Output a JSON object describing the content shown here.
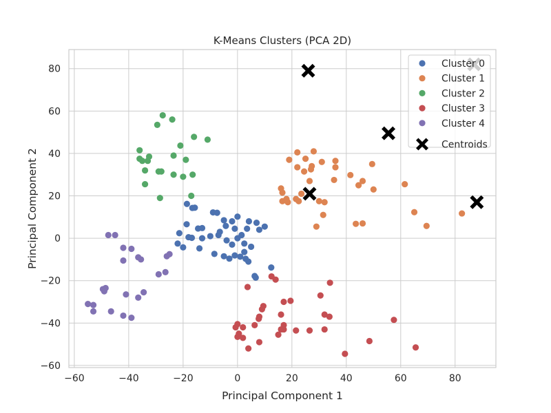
{
  "chart_data": {
    "type": "scatter",
    "title": "K-Means Clusters (PCA 2D)",
    "xlabel": "Principal Component 1",
    "ylabel": "Principal Component 2",
    "xlim": [
      -62,
      95
    ],
    "ylim": [
      -61,
      89
    ],
    "xticks": [
      -60,
      -40,
      -20,
      0,
      20,
      40,
      60,
      80
    ],
    "yticks": [
      -60,
      -40,
      -20,
      0,
      20,
      40,
      60,
      80
    ],
    "grid": true,
    "legend_position": "top-right",
    "series": [
      {
        "name": "Cluster 0",
        "color": "#4c72b0",
        "points": [
          [
            -18.6,
            16.2
          ],
          [
            -16.6,
            14.3
          ],
          [
            -15.7,
            14.4
          ],
          [
            -9.0,
            12.2
          ],
          [
            -7.5,
            12.0
          ],
          [
            -18.7,
            6.6
          ],
          [
            -14.5,
            4.6
          ],
          [
            -13.0,
            4.8
          ],
          [
            -5.0,
            8.5
          ],
          [
            -2.0,
            8.0
          ],
          [
            0.0,
            10.2
          ],
          [
            4.2,
            8.0
          ],
          [
            7.0,
            7.3
          ],
          [
            10.0,
            5.5
          ],
          [
            8.0,
            4.0
          ],
          [
            -21.4,
            2.4
          ],
          [
            -16.8,
            0.2
          ],
          [
            -14.0,
            -4.8
          ],
          [
            -8.5,
            -7.4
          ],
          [
            -5.0,
            -8.5
          ],
          [
            -3.0,
            -9.6
          ],
          [
            -1.0,
            -8.1
          ],
          [
            1.0,
            -8.7
          ],
          [
            3.0,
            -9.7
          ],
          [
            4.0,
            -11.0
          ],
          [
            -22.0,
            -2.5
          ],
          [
            -20.0,
            -4.3
          ],
          [
            -18.0,
            0.5
          ],
          [
            -13.0,
            0.0
          ],
          [
            -10.0,
            1.0
          ],
          [
            -6.5,
            3.0
          ],
          [
            -4.0,
            -1.0
          ],
          [
            -2.0,
            -3.0
          ],
          [
            0.0,
            0.0
          ],
          [
            1.5,
            1.5
          ],
          [
            2.5,
            -2.5
          ],
          [
            3.5,
            4.5
          ],
          [
            5.0,
            -4.0
          ],
          [
            2.5,
            -6.5
          ],
          [
            -1.0,
            4.5
          ],
          [
            6.3,
            -17.8
          ],
          [
            6.7,
            -18.6
          ],
          [
            12.4,
            -13.8
          ],
          [
            -4.3,
            5.8
          ],
          [
            -7.0,
            1.5
          ]
        ]
      },
      {
        "name": "Cluster 1",
        "color": "#dd8452",
        "points": [
          [
            22.0,
            40.5
          ],
          [
            28.0,
            41.0
          ],
          [
            19.0,
            37.0
          ],
          [
            25.0,
            37.5
          ],
          [
            31.0,
            36.0
          ],
          [
            36.0,
            36.5
          ],
          [
            22.0,
            33.5
          ],
          [
            24.5,
            31.5
          ],
          [
            27.0,
            32.5
          ],
          [
            27.3,
            34.0
          ],
          [
            36.0,
            33.5
          ],
          [
            41.5,
            29.8
          ],
          [
            49.5,
            35.0
          ],
          [
            16.0,
            23.5
          ],
          [
            16.5,
            21.5
          ],
          [
            21.5,
            18.5
          ],
          [
            23.5,
            21.0
          ],
          [
            18.0,
            18.5
          ],
          [
            16.5,
            17.5
          ],
          [
            18.5,
            17.0
          ],
          [
            22.5,
            17.5
          ],
          [
            26.5,
            27.0
          ],
          [
            30.0,
            17.5
          ],
          [
            32.0,
            17.0
          ],
          [
            35.5,
            27.5
          ],
          [
            44.5,
            25.0
          ],
          [
            46.0,
            27.0
          ],
          [
            50.0,
            23.0
          ],
          [
            61.5,
            25.5
          ],
          [
            31.5,
            11.0
          ],
          [
            29.0,
            5.5
          ],
          [
            43.5,
            6.8
          ],
          [
            46.0,
            7.0
          ],
          [
            65.0,
            12.3
          ],
          [
            69.5,
            5.8
          ],
          [
            82.5,
            11.7
          ]
        ]
      },
      {
        "name": "Cluster 2",
        "color": "#55a868",
        "points": [
          [
            -27.5,
            58.0
          ],
          [
            -29.5,
            53.5
          ],
          [
            -24.0,
            56.0
          ],
          [
            -16.0,
            47.8
          ],
          [
            -11.0,
            46.5
          ],
          [
            -21.0,
            43.7
          ],
          [
            -36.0,
            41.5
          ],
          [
            -32.5,
            38.5
          ],
          [
            -36.0,
            37.5
          ],
          [
            -35.0,
            36.5
          ],
          [
            -33.0,
            36.5
          ],
          [
            -23.5,
            39.0
          ],
          [
            -19.0,
            37.0
          ],
          [
            -34.0,
            32.0
          ],
          [
            -29.0,
            31.5
          ],
          [
            -28.0,
            31.5
          ],
          [
            -20.0,
            29.0
          ],
          [
            -23.5,
            30.0
          ],
          [
            -16.5,
            30.0
          ],
          [
            -34.0,
            25.5
          ],
          [
            -17.0,
            20.0
          ],
          [
            -28.5,
            19.0
          ]
        ]
      },
      {
        "name": "Cluster 3",
        "color": "#c44e52",
        "points": [
          [
            3.7,
            -23.0
          ],
          [
            12.5,
            -18.0
          ],
          [
            14.0,
            -19.5
          ],
          [
            34.0,
            -21.0
          ],
          [
            30.5,
            -27.0
          ],
          [
            17.0,
            -30.0
          ],
          [
            19.5,
            -29.5
          ],
          [
            9.5,
            -32.0
          ],
          [
            9.0,
            -33.5
          ],
          [
            8.0,
            -37.0
          ],
          [
            7.8,
            -38.0
          ],
          [
            16.0,
            -36.0
          ],
          [
            32.0,
            -36.0
          ],
          [
            33.8,
            -37.0
          ],
          [
            57.5,
            -38.5
          ],
          [
            0.0,
            -40.5
          ],
          [
            6.3,
            -41.0
          ],
          [
            17.0,
            -41.0
          ],
          [
            -0.7,
            -42.0
          ],
          [
            2.0,
            -42.0
          ],
          [
            16.0,
            -43.0
          ],
          [
            17.0,
            -43.0
          ],
          [
            21.5,
            -43.5
          ],
          [
            26.5,
            -43.5
          ],
          [
            32.0,
            -43.0
          ],
          [
            0.5,
            -45.0
          ],
          [
            15.0,
            -45.5
          ],
          [
            0.0,
            -46.5
          ],
          [
            2.0,
            -47.0
          ],
          [
            8.0,
            -49.0
          ],
          [
            48.5,
            -48.5
          ],
          [
            4.0,
            -52.0
          ],
          [
            39.5,
            -54.5
          ],
          [
            65.5,
            -51.5
          ]
        ]
      },
      {
        "name": "Cluster 4",
        "color": "#8172b3",
        "points": [
          [
            -47.5,
            1.5
          ],
          [
            -45.0,
            1.5
          ],
          [
            -42.0,
            -4.5
          ],
          [
            -39.0,
            -5.0
          ],
          [
            -36.5,
            -9.0
          ],
          [
            -35.5,
            -10.0
          ],
          [
            -42.0,
            -10.5
          ],
          [
            -26.0,
            -8.5
          ],
          [
            -25.0,
            -7.5
          ],
          [
            -26.5,
            -16.0
          ],
          [
            -29.0,
            -17.0
          ],
          [
            -48.5,
            -23.5
          ],
          [
            -49.5,
            -24.0
          ],
          [
            -49.0,
            -25.0
          ],
          [
            -34.5,
            -25.5
          ],
          [
            -41.0,
            -26.5
          ],
          [
            -36.5,
            -28.0
          ],
          [
            -55.0,
            -31.0
          ],
          [
            -53.0,
            -31.5
          ],
          [
            -53.0,
            -34.5
          ],
          [
            -46.5,
            -34.5
          ],
          [
            -42.0,
            -36.5
          ],
          [
            -39.0,
            -37.5
          ]
        ]
      },
      {
        "name": "Centroids",
        "color": "#000000",
        "marker": "X",
        "points": [
          [
            26.0,
            79.0
          ],
          [
            55.5,
            49.5
          ],
          [
            26.5,
            21.0
          ],
          [
            88.0,
            17.0
          ],
          [
            87.0,
            82.0
          ]
        ]
      }
    ]
  }
}
